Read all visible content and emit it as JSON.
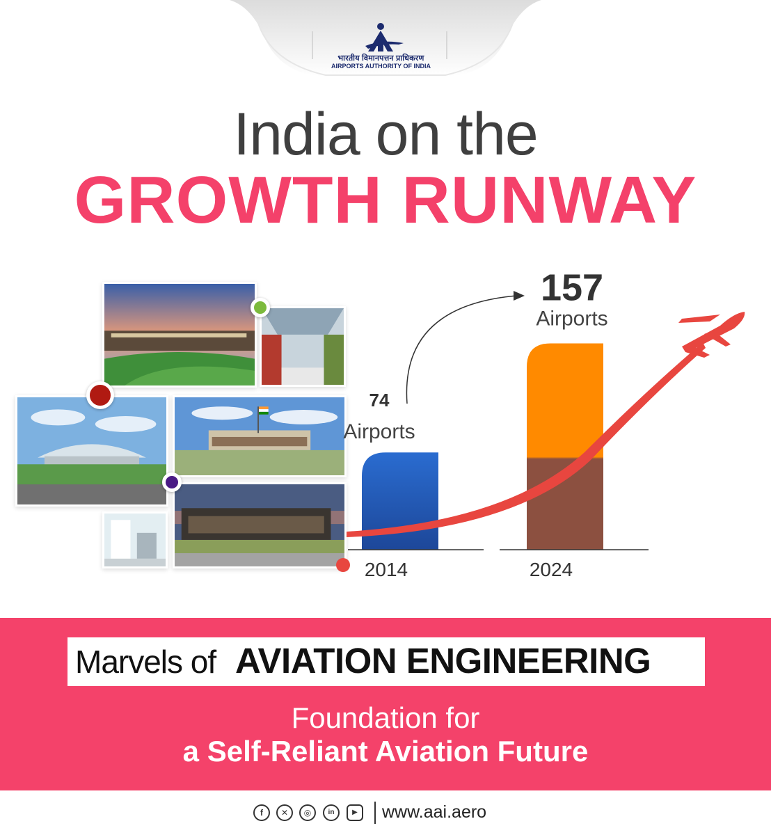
{
  "logo": {
    "hindi_name": "भारतीय विमानपत्तन प्राधिकरण",
    "english_name": "AIRPORTS AUTHORITY OF INDIA"
  },
  "headline": {
    "line1": "India on the",
    "line2": "GROWTH RUNWAY"
  },
  "chart_data": {
    "type": "bar",
    "categories": [
      "2014",
      "2024"
    ],
    "values": [
      74,
      157
    ],
    "value_labels": [
      "74",
      "157"
    ],
    "unit_label": "Airports",
    "xlabel": "",
    "ylabel": "",
    "ylim": [
      0,
      180
    ],
    "grid": false,
    "colors": {
      "bar_2014": "#2a6cd0",
      "bar_2014_dark": "#1d4799",
      "bar_2024_top": "#ff8a00",
      "bar_2024_bottom": "#8c5040",
      "trend_line": "#e8463f",
      "axis": "#333333"
    }
  },
  "banner": {
    "marvels_prefix": "Marvels of",
    "marvels_bold": "AVIATION ENGINEERING",
    "foundation_line1": "Foundation for",
    "foundation_line2": "a Self-Reliant Aviation Future"
  },
  "footer": {
    "icons": [
      "facebook-icon",
      "x-icon",
      "instagram-icon",
      "linkedin-icon",
      "youtube-icon"
    ],
    "url": "www.aai.aero"
  },
  "colors": {
    "brand_pink": "#f4426a",
    "text_dark": "#3f3f3f",
    "logo_blue": "#1c2b6e"
  }
}
